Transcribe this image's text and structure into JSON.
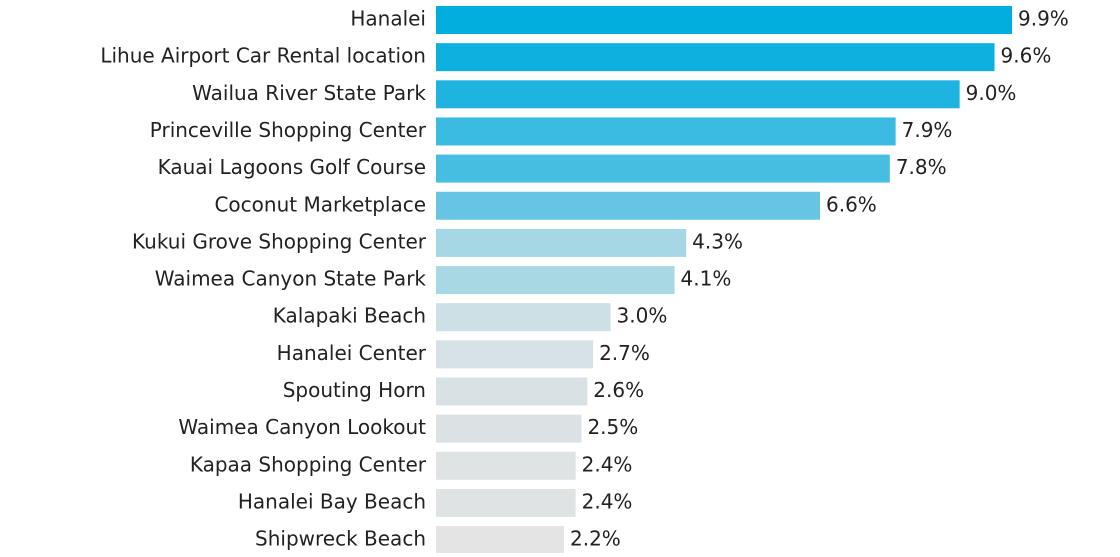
{
  "chart_data": {
    "type": "barh",
    "categories": [
      "Hanalei",
      "Lihue Airport Car Rental location",
      "Wailua River State Park",
      "Princeville Shopping Center",
      "Kauai Lagoons Golf Course",
      "Coconut Marketplace",
      "Kukui Grove Shopping Center",
      "Waimea Canyon State Park",
      "Kalapaki Beach",
      "Hanalei Center",
      "Spouting Horn",
      "Waimea Canyon Lookout",
      "Kapaa Shopping Center",
      "Hanalei Bay Beach",
      "Shipwreck Beach"
    ],
    "values": [
      9.9,
      9.6,
      9.0,
      7.9,
      7.8,
      6.6,
      4.3,
      4.1,
      3.0,
      2.7,
      2.6,
      2.5,
      2.4,
      2.4,
      2.2
    ],
    "value_labels": [
      "9.9%",
      "9.6%",
      "9.0%",
      "7.9%",
      "7.8%",
      "6.6%",
      "4.3%",
      "4.1%",
      "3.0%",
      "2.7%",
      "2.6%",
      "2.5%",
      "2.4%",
      "2.4%",
      "2.2%"
    ],
    "colors": [
      "#02aede",
      "#0bb0de",
      "#1fb4e0",
      "#3bbbe1",
      "#45bee2",
      "#66c5e2",
      "#a5d7e5",
      "#a9d8e5",
      "#cde0e6",
      "#d5e1e5",
      "#d8e2e5",
      "#dce2e4",
      "#dfe3e4",
      "#e0e3e4",
      "#e4e4e4"
    ]
  }
}
